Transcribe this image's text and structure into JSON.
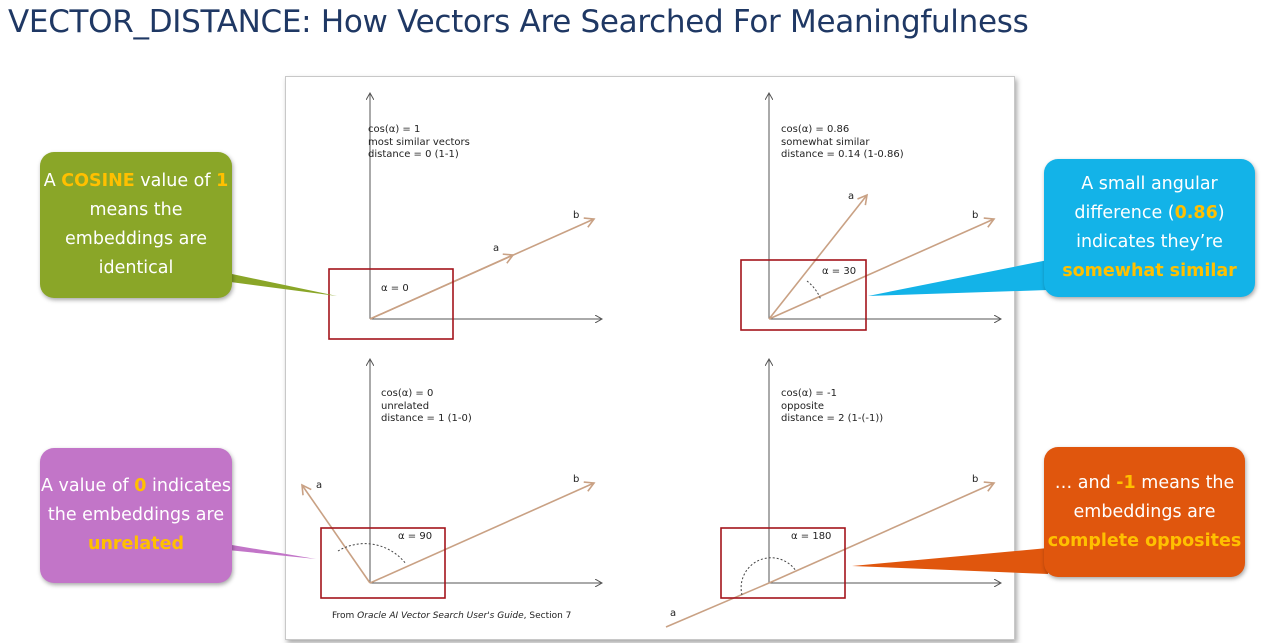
{
  "title": "VECTOR_DISTANCE: How Vectors Are Searched For Meaningfulness",
  "quadrants": {
    "q1": {
      "cos": "cos(α) = 1",
      "desc": "most similar vectors",
      "distance": "distance = 0 (1-1)",
      "alpha": "α = 0",
      "label_a": "a",
      "label_b": "b",
      "cos_value": 1,
      "angle_deg": 0
    },
    "q2": {
      "cos": "cos(α) = 0.86",
      "desc": "somewhat similar",
      "distance": "distance = 0.14 (1-0.86)",
      "alpha": "α = 30",
      "label_a": "a",
      "label_b": "b",
      "cos_value": 0.86,
      "angle_deg": 30
    },
    "q3": {
      "cos": "cos(α) = 0",
      "desc": "unrelated",
      "distance": "distance = 1 (1-0)",
      "alpha": "α = 90",
      "label_a": "a",
      "label_b": "b",
      "cos_value": 0,
      "angle_deg": 90
    },
    "q4": {
      "cos": "cos(α) = -1",
      "desc": "opposite",
      "distance": "distance = 2 (1-(-1))",
      "alpha": "α = 180",
      "label_a": "a",
      "label_b": "b",
      "cos_value": -1,
      "angle_deg": 180
    }
  },
  "source": {
    "prefix": "From ",
    "italic": "Oracle AI Vector Search User's Guide",
    "suffix": ", Section 7"
  },
  "callouts": {
    "green": {
      "p1": "A ",
      "h1": "COSINE",
      "p2": " value of ",
      "h2": "1",
      "p3": " means the embeddings are identical"
    },
    "blue": {
      "p1": "A small angular difference (",
      "h1": "0.86",
      "p2": ") indicates they’re ",
      "h2": "somewhat similar"
    },
    "purple": {
      "p1": "A value of ",
      "h1": "0",
      "p2": " indicates the embeddings are ",
      "h2": "unrelated"
    },
    "orange": {
      "p1": "… and ",
      "h1": "-1",
      "p2": " means the embeddings are ",
      "h2": "complete opposites"
    }
  },
  "colors": {
    "title": "#1f3864",
    "vector": "#c9a184",
    "axis": "#555555",
    "highlight_box": "#a3141c",
    "green": "#8aa628",
    "blue": "#13b3e8",
    "purple": "#c275c8",
    "orange": "#e0560d",
    "accent_text": "#ffc000"
  }
}
